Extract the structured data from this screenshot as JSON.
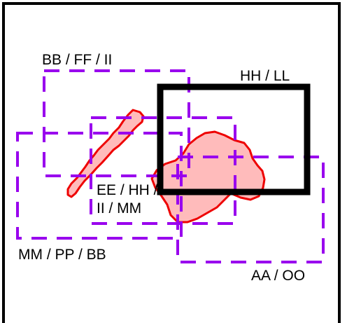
{
  "labels": {
    "bb_ff_ii": "BB / FF / II",
    "hh_ll": "HH / LL",
    "ee_hh_ii_mm_line1": "EE / HH /",
    "ee_hh_ii_mm_line2": "II / MM",
    "mm_pp_bb": "MM / PP / BB",
    "aa_oo": "AA / OO"
  },
  "colors": {
    "frame": "#000000",
    "dashed_boxes": "#9900ee",
    "region_fill": "#ffbbbb",
    "region_stroke": "#ee0000",
    "solid_box": "#000000",
    "background": "#ffffff"
  }
}
